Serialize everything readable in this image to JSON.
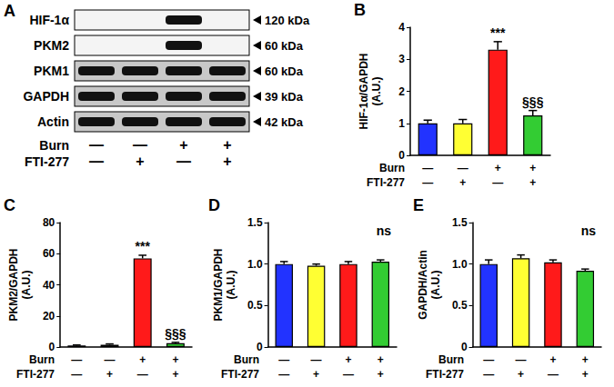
{
  "blot": {
    "title": "A",
    "lanes": [
      "—\n—",
      "—\n+",
      "+\n—",
      "+\n+"
    ],
    "lane_rows": [
      "Burn",
      "FTI-277"
    ],
    "rows": [
      {
        "label": "HIF-1α",
        "size": "120 kDa",
        "bands": [
          false,
          false,
          true,
          false
        ]
      },
      {
        "label": "PKM2",
        "size": "60 kDa",
        "bands": [
          false,
          false,
          true,
          false
        ]
      },
      {
        "label": "PKM1",
        "size": "60 kDa",
        "bands": [
          true,
          true,
          true,
          true
        ]
      },
      {
        "label": "GAPDH",
        "size": "39 kDa",
        "bands": [
          true,
          true,
          true,
          true
        ]
      },
      {
        "label": "Actin",
        "size": "42 kDa",
        "bands": [
          true,
          true,
          true,
          true
        ]
      }
    ]
  },
  "chart_data": [
    {
      "type": "bar",
      "title": "B",
      "y_label": "HIF-1α/GAPDH\n(A.U.)",
      "categories": [
        "—\n—",
        "—\n+",
        "+\n—",
        "+\n+"
      ],
      "category_rows": [
        "Burn",
        "FTI-277"
      ],
      "values": [
        1.0,
        1.0,
        3.3,
        1.25
      ],
      "errors": [
        0.1,
        0.12,
        0.25,
        0.15
      ],
      "annotations": [
        null,
        null,
        "***",
        "§§§"
      ],
      "colors": [
        "#2233ff",
        "#ffff33",
        "#ff1a1a",
        "#33cc33"
      ],
      "ylim": [
        0,
        4
      ],
      "yticks": [
        0,
        1,
        2,
        3,
        4
      ],
      "grid": false
    },
    {
      "type": "bar",
      "title": "C",
      "y_label": "PKM2/GAPDH\n(A.U.)",
      "categories": [
        "—\n—",
        "—\n+",
        "+\n—",
        "+\n+"
      ],
      "category_rows": [
        "Burn",
        "FTI-277"
      ],
      "values": [
        1.0,
        1.5,
        57,
        2.5
      ],
      "errors": [
        0.3,
        0.5,
        2,
        0.5
      ],
      "annotations": [
        null,
        null,
        "***",
        "§§§"
      ],
      "colors": [
        "#2233ff",
        "#ffff33",
        "#ff1a1a",
        "#33cc33"
      ],
      "ylim": [
        0,
        80
      ],
      "yticks": [
        0,
        20,
        40,
        60,
        80
      ],
      "grid": false
    },
    {
      "type": "bar",
      "title": "D",
      "y_label": "PKM1/GAPDH\n(A.U.)",
      "categories": [
        "—\n—",
        "—\n+",
        "+\n—",
        "+\n+"
      ],
      "category_rows": [
        "Burn",
        "FTI-277"
      ],
      "values": [
        1.0,
        0.98,
        1.0,
        1.03
      ],
      "errors": [
        0.03,
        0.02,
        0.03,
        0.02
      ],
      "annotation": "ns",
      "colors": [
        "#2233ff",
        "#ffff33",
        "#ff1a1a",
        "#33cc33"
      ],
      "ylim": [
        0,
        1.5
      ],
      "yticks": [
        0,
        0.5,
        {
          "value": 1,
          "label": "1.0"
        },
        1.5
      ],
      "grid": false
    },
    {
      "type": "bar",
      "title": "E",
      "y_label": "GAPDH/Actin\n(A.U.)",
      "categories": [
        "—\n—",
        "—\n+",
        "+\n—",
        "+\n+"
      ],
      "category_rows": [
        "Burn",
        "FTI-277"
      ],
      "values": [
        1.0,
        1.07,
        1.02,
        0.92
      ],
      "errors": [
        0.05,
        0.04,
        0.03,
        0.02
      ],
      "annotation": "ns",
      "colors": [
        "#2233ff",
        "#ffff33",
        "#ff1a1a",
        "#33cc33"
      ],
      "ylim": [
        0,
        1.5
      ],
      "yticks": [
        0,
        0.5,
        {
          "value": 1,
          "label": "1.0"
        },
        1.5
      ],
      "grid": false
    }
  ]
}
